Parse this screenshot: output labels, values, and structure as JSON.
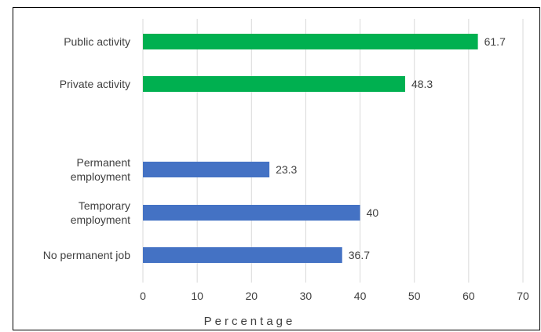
{
  "chart_data": {
    "type": "bar",
    "orientation": "horizontal",
    "title": "",
    "xlabel": "Percentage",
    "ylabel": "",
    "xlim": [
      0,
      70
    ],
    "x_ticks": [
      0,
      10,
      20,
      30,
      40,
      50,
      60,
      70
    ],
    "grid": "vertical",
    "legend": "none",
    "groups": [
      {
        "color": "#00b050",
        "categories": [
          {
            "lines": [
              "Public activity"
            ],
            "value": 61.7,
            "value_label": "61.7"
          },
          {
            "lines": [
              "Private activity"
            ],
            "value": 48.3,
            "value_label": "48.3"
          }
        ]
      },
      {
        "color": "#4472c4",
        "categories": [
          {
            "lines": [
              "Permanent",
              "employment"
            ],
            "value": 23.3,
            "value_label": "23.3"
          },
          {
            "lines": [
              "Temporary",
              "employment"
            ],
            "value": 40,
            "value_label": "40"
          },
          {
            "lines": [
              "No permanent job"
            ],
            "value": 36.7,
            "value_label": "36.7"
          }
        ]
      }
    ]
  }
}
